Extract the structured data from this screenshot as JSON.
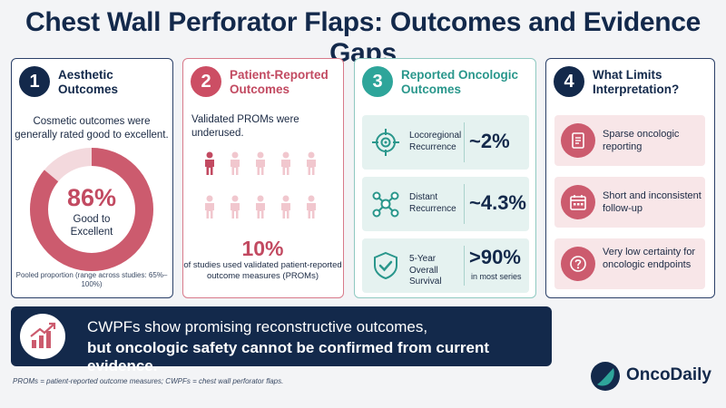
{
  "title": "Chest Wall Perforator Flaps: Outcomes and Evidence Gaps",
  "colors": {
    "navy": "#13294b",
    "rose": "#cc4e64",
    "teal": "#2ea59a",
    "light_rose": "#f8e6e8",
    "light_teal": "#e5f2f0"
  },
  "card1": {
    "number": "1",
    "title": "Aesthetic Outcomes",
    "description": "Cosmetic outcomes were generally rated good to excellent.",
    "percent": "86%",
    "percent_value": 86,
    "percent_label": "Good to Excellent",
    "footnote": "Pooled proportion (range across studies: 65%–100%)"
  },
  "card2": {
    "number": "2",
    "title": "Patient-Reported Outcomes",
    "description": "Validated PROMs were underused.",
    "people_total": 10,
    "people_highlighted": 1,
    "icon": "person-icon",
    "percent": "10%",
    "stat_text": "of studies used validated patient-reported outcome measures (PROMs)"
  },
  "card3": {
    "number": "3",
    "title": "Reported Oncologic Outcomes",
    "rows": [
      {
        "icon": "target-icon",
        "label": "Locoregional Recurrence",
        "value": "~2%",
        "sub": ""
      },
      {
        "icon": "network-nodes-icon",
        "label": "Distant Recurrence",
        "value": "~4.3%",
        "sub": ""
      },
      {
        "icon": "shield-check-icon",
        "label": "5-Year Overall Survival",
        "value": ">90%",
        "sub": "in most series"
      }
    ]
  },
  "card4": {
    "number": "4",
    "title": "What Limits Interpretation?",
    "rows": [
      {
        "icon": "document-icon",
        "text": "Sparse oncologic reporting"
      },
      {
        "icon": "calendar-icon",
        "text": "Short and inconsistent follow-up"
      },
      {
        "icon": "question-icon",
        "text": "Very low certainty for oncologic endpoints"
      }
    ]
  },
  "banner": {
    "icon": "rising-chart-icon",
    "line1": "CWPFs show promising reconstructive outcomes,",
    "line2": "but oncologic safety cannot be confirmed from current evidence."
  },
  "footnote": "PROMs = patient-reported outcome measures; CWPFs = chest wall perforator flaps.",
  "logo": {
    "text": "OncoDaily",
    "icon": "oncodaily-logo-icon"
  }
}
